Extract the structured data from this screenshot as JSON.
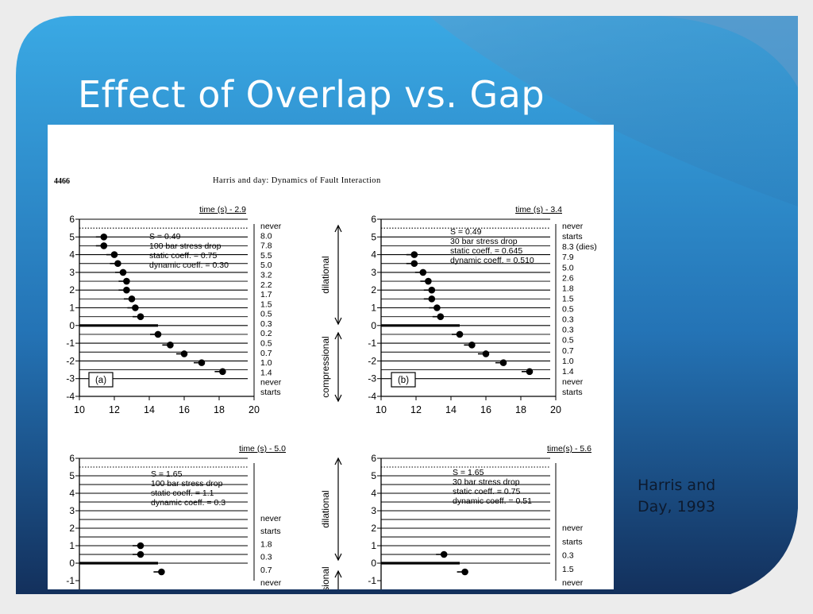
{
  "slide": {
    "title": "Effect of Overlap vs. Gap",
    "citation_lines": [
      "Harris and",
      "Day, 1993"
    ]
  },
  "paper_header": {
    "page_number": "4466",
    "running_title": "Harris and day: Dynamics of Fault Interaction"
  },
  "colors": {
    "bg_blue_light": "#39a9e3",
    "bg_blue_dark": "#15305e",
    "frame_gray": "#ececec",
    "ink": "#000000"
  },
  "chart_data": [
    {
      "type": "scatter",
      "panel_label": "(a)",
      "time_label": "time (s) - 2.9",
      "annotations": [
        "S = 0.49",
        "100 bar stress drop",
        "static coeff. = 0.75",
        "dynamic coeff. = 0.30"
      ],
      "xlim": [
        10,
        20
      ],
      "ylim": [
        -4,
        6
      ],
      "x_ticks": [
        "10",
        "12",
        "14",
        "16",
        "18",
        "20"
      ],
      "y_ticks": [
        "-4",
        "-3",
        "-2",
        "-1",
        "0",
        "1",
        "2",
        "3",
        "4",
        "5",
        "6"
      ],
      "side_labels": [
        "never",
        "8.0",
        "7.8",
        "5.5",
        "5.0",
        "3.2",
        "2.2",
        "1.7",
        "1.5",
        "0.5",
        "0.3",
        "0.2",
        "0.5",
        "0.7",
        "1.0",
        "1.4",
        "never",
        "starts"
      ],
      "points": [
        {
          "x": 11.4,
          "y": 5.0
        },
        {
          "x": 11.4,
          "y": 4.5
        },
        {
          "x": 12.0,
          "y": 4.0
        },
        {
          "x": 12.2,
          "y": 3.5
        },
        {
          "x": 12.5,
          "y": 3.0
        },
        {
          "x": 12.7,
          "y": 2.5
        },
        {
          "x": 12.7,
          "y": 2.0
        },
        {
          "x": 13.0,
          "y": 1.5
        },
        {
          "x": 13.2,
          "y": 1.0
        },
        {
          "x": 13.5,
          "y": 0.5
        },
        {
          "x": 14.5,
          "y": -0.5
        },
        {
          "x": 15.2,
          "y": -1.1
        },
        {
          "x": 16.0,
          "y": -1.6
        },
        {
          "x": 17.0,
          "y": -2.1
        },
        {
          "x": 18.2,
          "y": -2.6
        }
      ]
    },
    {
      "type": "scatter",
      "panel_label": "(b)",
      "time_label": "time (s) - 3.4",
      "annotations": [
        "S = 0.49",
        "30 bar stress drop",
        "static coeff. = 0.645",
        "dynamic coeff. = 0.510"
      ],
      "xlim": [
        10,
        20
      ],
      "ylim": [
        -4,
        6
      ],
      "x_ticks": [
        "10",
        "12",
        "14",
        "16",
        "18",
        "20"
      ],
      "y_ticks": [
        "-4",
        "-3",
        "-2",
        "-1",
        "0",
        "1",
        "2",
        "3",
        "4",
        "5",
        "6"
      ],
      "side_labels": [
        "never",
        "starts",
        "8.3 (dies)",
        "7.9",
        "5.0",
        "2.6",
        "1.8",
        "1.5",
        "0.5",
        "0.3",
        "0.3",
        "0.5",
        "0.7",
        "1.0",
        "1.4",
        "never",
        "starts"
      ],
      "axis_labels": [
        "dilational",
        "compressional"
      ],
      "points": [
        {
          "x": 11.9,
          "y": 4.0
        },
        {
          "x": 11.9,
          "y": 3.5
        },
        {
          "x": 12.4,
          "y": 3.0
        },
        {
          "x": 12.7,
          "y": 2.5
        },
        {
          "x": 12.9,
          "y": 2.0
        },
        {
          "x": 12.9,
          "y": 1.5
        },
        {
          "x": 13.2,
          "y": 1.0
        },
        {
          "x": 13.4,
          "y": 0.5
        },
        {
          "x": 14.5,
          "y": -0.5
        },
        {
          "x": 15.2,
          "y": -1.1
        },
        {
          "x": 16.0,
          "y": -1.6
        },
        {
          "x": 17.0,
          "y": -2.1
        },
        {
          "x": 18.5,
          "y": -2.6
        }
      ]
    },
    {
      "type": "scatter",
      "time_label": "time (s) - 5.0",
      "annotations": [
        "S = 1.65",
        "100 bar stress drop",
        "static coeff. = 1.1",
        "dynamic coeff. = 0.3"
      ],
      "ylim": [
        -1,
        6
      ],
      "y_ticks": [
        "-1",
        "0",
        "1",
        "2",
        "3",
        "4",
        "5",
        "6"
      ],
      "side_labels": [
        "never",
        "starts",
        "1.8",
        "0.3",
        "0.7",
        "never"
      ],
      "points": [
        {
          "x": 13.5,
          "y": 1.0
        },
        {
          "x": 13.5,
          "y": 0.5
        },
        {
          "x": 14.7,
          "y": -0.5
        }
      ]
    },
    {
      "type": "scatter",
      "time_label": "time(s) - 5.6",
      "annotations": [
        "S = 1.65",
        "30 bar stress drop",
        "static coeff. = 0.75",
        "dynamic coeff. = 0.51"
      ],
      "ylim": [
        -1,
        6
      ],
      "y_ticks": [
        "-1",
        "0",
        "1",
        "2",
        "3",
        "4",
        "5",
        "6"
      ],
      "side_labels": [
        "never",
        "starts",
        "0.3",
        "1.5",
        "never"
      ],
      "axis_labels": [
        "dilational",
        "sional"
      ],
      "points": [
        {
          "x": 13.6,
          "y": 0.5
        },
        {
          "x": 14.8,
          "y": -0.5
        }
      ]
    }
  ]
}
